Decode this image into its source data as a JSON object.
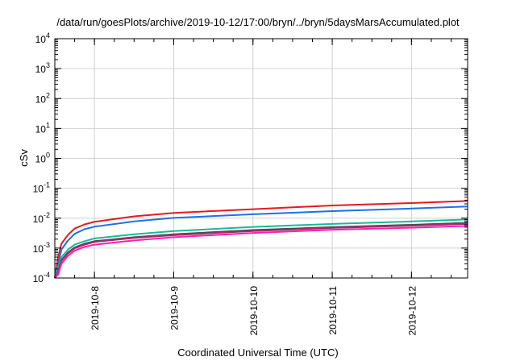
{
  "chart_data": {
    "type": "line",
    "title": "/data/run/goesPlots/archive/2019-10-12/17:00/bryn/../bryn/5daysMarsAccumulated.plot",
    "xlabel": "Coordinated Universal Time (UTC)",
    "ylabel": "cSv",
    "y_scale": "log",
    "ylim": [
      0.0001,
      10000
    ],
    "xlim": [
      "2019-10-07T12:00",
      "2019-10-12T17:00"
    ],
    "y_ticks": [
      {
        "base": "10",
        "exp": "-4",
        "value": 0.0001
      },
      {
        "base": "10",
        "exp": "-3",
        "value": 0.001
      },
      {
        "base": "10",
        "exp": "-2",
        "value": 0.01
      },
      {
        "base": "10",
        "exp": "-1",
        "value": 0.1
      },
      {
        "base": "10",
        "exp": "0",
        "value": 1
      },
      {
        "base": "10",
        "exp": "1",
        "value": 10
      },
      {
        "base": "10",
        "exp": "2",
        "value": 100
      },
      {
        "base": "10",
        "exp": "3",
        "value": 1000
      },
      {
        "base": "10",
        "exp": "4",
        "value": 10000
      }
    ],
    "x_ticks": [
      {
        "label": "2019-10-8",
        "value": "2019-10-08T00:00"
      },
      {
        "label": "2019-10-9",
        "value": "2019-10-09T00:00"
      },
      {
        "label": "2019-10-10",
        "value": "2019-10-10T00:00"
      },
      {
        "label": "2019-10-11",
        "value": "2019-10-11T00:00"
      },
      {
        "label": "2019-10-12",
        "value": "2019-10-12T00:00"
      }
    ],
    "grid": true,
    "series": [
      {
        "color": "#e41a1c",
        "x": [
          "2019-10-07T12:00",
          "2019-10-07T13:00",
          "2019-10-07T14:00",
          "2019-10-07T16:00",
          "2019-10-07T18:00",
          "2019-10-07T21:00",
          "2019-10-08T00:00",
          "2019-10-08T12:00",
          "2019-10-09T00:00",
          "2019-10-10T00:00",
          "2019-10-11T00:00",
          "2019-10-12T00:00",
          "2019-10-12T17:00"
        ],
        "values": [
          0.0001,
          0.0005,
          0.0014,
          0.0028,
          0.0045,
          0.0062,
          0.0076,
          0.0115,
          0.015,
          0.02,
          0.0265,
          0.032,
          0.0375
        ]
      },
      {
        "color": "#1f6feb",
        "x": [
          "2019-10-07T12:00",
          "2019-10-07T13:00",
          "2019-10-07T14:00",
          "2019-10-07T16:00",
          "2019-10-07T18:00",
          "2019-10-07T21:00",
          "2019-10-08T00:00",
          "2019-10-08T12:00",
          "2019-10-09T00:00",
          "2019-10-10T00:00",
          "2019-10-11T00:00",
          "2019-10-12T00:00",
          "2019-10-12T17:00"
        ],
        "values": [
          0.0001,
          0.0003,
          0.0009,
          0.0018,
          0.003,
          0.0043,
          0.0052,
          0.0078,
          0.0102,
          0.0135,
          0.0172,
          0.021,
          0.0245
        ]
      },
      {
        "color": "#1bb89a",
        "x": [
          "2019-10-07T12:00",
          "2019-10-07T13:00",
          "2019-10-07T14:00",
          "2019-10-07T16:00",
          "2019-10-07T18:00",
          "2019-10-07T21:00",
          "2019-10-08T00:00",
          "2019-10-08T12:00",
          "2019-10-09T00:00",
          "2019-10-10T00:00",
          "2019-10-11T00:00",
          "2019-10-12T00:00",
          "2019-10-12T17:00"
        ],
        "values": [
          0.0001,
          0.00022,
          0.0005,
          0.0009,
          0.0013,
          0.0017,
          0.0021,
          0.0029,
          0.0037,
          0.0051,
          0.0064,
          0.0078,
          0.009
        ]
      },
      {
        "color": "#4a4a4a",
        "x": [
          "2019-10-07T12:00",
          "2019-10-07T13:00",
          "2019-10-07T14:00",
          "2019-10-07T16:00",
          "2019-10-07T18:00",
          "2019-10-07T21:00",
          "2019-10-08T00:00",
          "2019-10-08T12:00",
          "2019-10-09T00:00",
          "2019-10-10T00:00",
          "2019-10-11T00:00",
          "2019-10-12T00:00",
          "2019-10-12T17:00"
        ],
        "values": [
          0.0001,
          0.00017,
          0.0004,
          0.00072,
          0.00105,
          0.0014,
          0.0017,
          0.0023,
          0.0029,
          0.004,
          0.005,
          0.006,
          0.007
        ]
      },
      {
        "color": "#a0306e",
        "x": [
          "2019-10-07T12:00",
          "2019-10-07T13:00",
          "2019-10-07T14:00",
          "2019-10-07T16:00",
          "2019-10-07T18:00",
          "2019-10-07T21:00",
          "2019-10-08T00:00",
          "2019-10-08T12:00",
          "2019-10-09T00:00",
          "2019-10-10T00:00",
          "2019-10-11T00:00",
          "2019-10-12T00:00",
          "2019-10-12T17:00"
        ],
        "values": [
          0.0001,
          0.00016,
          0.00037,
          0.00066,
          0.00098,
          0.0013,
          0.0016,
          0.0022,
          0.0027,
          0.0037,
          0.0047,
          0.0056,
          0.0064
        ]
      },
      {
        "color": "#ff1fb4",
        "x": [
          "2019-10-07T12:00",
          "2019-10-07T13:00",
          "2019-10-07T14:00",
          "2019-10-07T16:00",
          "2019-10-07T18:00",
          "2019-10-07T21:00",
          "2019-10-08T00:00",
          "2019-10-08T12:00",
          "2019-10-09T00:00",
          "2019-10-10T00:00",
          "2019-10-11T00:00",
          "2019-10-12T00:00",
          "2019-10-12T17:00"
        ],
        "values": [
          0.0001,
          0.00013,
          0.0003,
          0.00055,
          0.00082,
          0.0011,
          0.0013,
          0.0018,
          0.0023,
          0.0032,
          0.0041,
          0.0048,
          0.0055
        ]
      }
    ]
  }
}
